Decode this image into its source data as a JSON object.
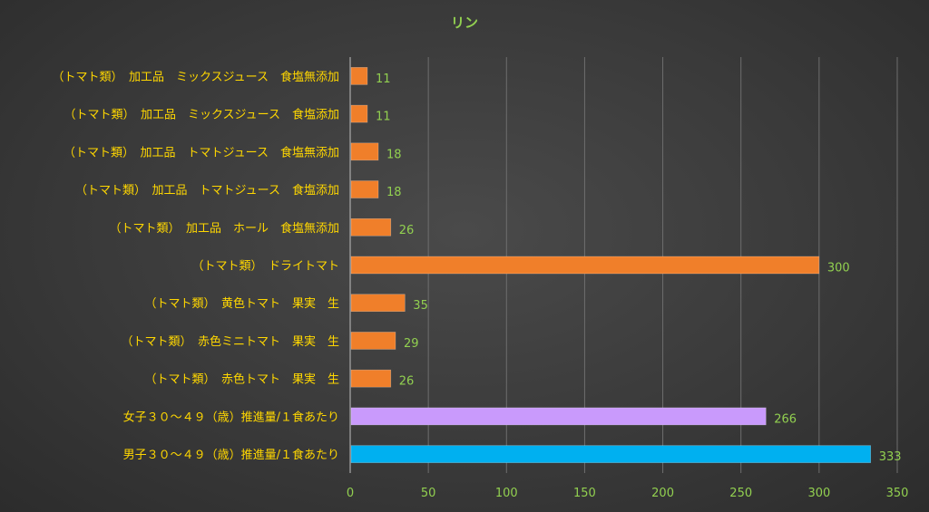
{
  "chart_data": {
    "type": "bar",
    "orientation": "horizontal",
    "title": "リン",
    "categories": [
      "（トマト類）　加工品　ミックスジュース　食塩無添加",
      "（トマト類）　加工品　ミックスジュース　食塩添加",
      "（トマト類）　加工品　トマトジュース　食塩無添加",
      "（トマト類）　加工品　トマトジュース　食塩添加",
      "（トマト類）　加工品　ホール　食塩無添加",
      "（トマト類）　ドライトマト",
      "（トマト類）　黄色トマト　果実　生",
      "（トマト類）　赤色ミニトマト　果実　生",
      "（トマト類）　赤色トマト　果実　生",
      "女子３０～４９（歳）推進量/１食あたり",
      "男子３０～４９（歳）推進量/１食あたり"
    ],
    "values": [
      11,
      11,
      18,
      18,
      26,
      300,
      35,
      29,
      26,
      266,
      333
    ],
    "bar_colors": [
      "#f07f2a",
      "#f07f2a",
      "#f07f2a",
      "#f07f2a",
      "#f07f2a",
      "#f07f2a",
      "#f07f2a",
      "#f07f2a",
      "#f07f2a",
      "#c99afc",
      "#00b0f0"
    ],
    "xlim": [
      0,
      350
    ],
    "x_ticks": [
      0,
      50,
      100,
      150,
      200,
      250,
      300,
      350
    ],
    "grid": true,
    "colors": {
      "title": "#92d050",
      "category_labels": "#ffd700",
      "value_labels": "#92d050",
      "tick_labels": "#92d050",
      "gridlines": "#6e6e6e",
      "axis": "#bfbfbf"
    }
  }
}
